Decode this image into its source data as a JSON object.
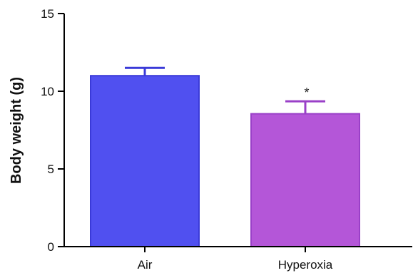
{
  "chart_data": {
    "type": "bar",
    "title": "",
    "xlabel": "",
    "ylabel": "Body weight (g)",
    "ylim": [
      0,
      15
    ],
    "yticks": [
      0,
      5,
      10,
      15
    ],
    "grid": false,
    "categories": [
      "Air",
      "Hyperoxia"
    ],
    "values": [
      11.0,
      8.55
    ],
    "error_upper": [
      11.5,
      9.35
    ],
    "colors": [
      "#5050f0",
      "#b456d8"
    ],
    "edge_colors": [
      "#3a3ad8",
      "#9a40c8"
    ],
    "annotations": [
      {
        "category": "Hyperoxia",
        "text": "*"
      }
    ]
  }
}
